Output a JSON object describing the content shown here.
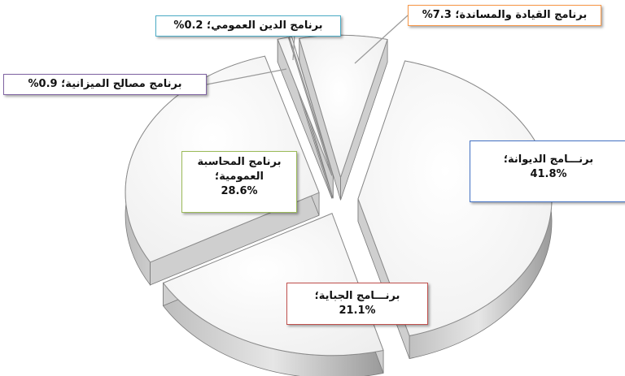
{
  "chart_data": {
    "type": "pie",
    "title": "",
    "slices": [
      {
        "label": "برنـــامج الديوانة؛",
        "value_text": "41.8%",
        "value": 41.8,
        "color": "#4472C4"
      },
      {
        "label": "برنـــامج الجباية؛",
        "value_text": "21.1%",
        "value": 21.1,
        "color": "#C0504D"
      },
      {
        "label": "برنامج المحاسبة العمومية؛",
        "value_text": "28.6%",
        "value": 28.6,
        "color": "#9BBB59"
      },
      {
        "label": "برنامج مصالح الميزانية؛",
        "value_text": "0.9%",
        "value": 0.9,
        "color": "#8064A2"
      },
      {
        "label": "برنامج الدين العمومي؛",
        "value_text": "0.2%",
        "value": 0.2,
        "color": "#4BACC6"
      },
      {
        "label": "برنامج القيادة والمساندة؛",
        "value_text": "7.3%",
        "value": 7.3,
        "color": "#F79646"
      }
    ]
  }
}
